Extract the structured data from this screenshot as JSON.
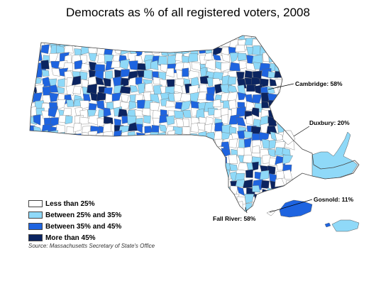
{
  "title": "Democrats as % of all registered voters, 2008",
  "legend": [
    {
      "label": "Less than 25%",
      "color": "#ffffff"
    },
    {
      "label": "Between 25% and 35%",
      "color": "#8fd9f8"
    },
    {
      "label": "Between 35% and 45%",
      "color": "#1e64e0"
    },
    {
      "label": "More than 45%",
      "color": "#0b2460"
    }
  ],
  "annotations": {
    "cambridge": "Cambridge: 58%",
    "duxbury": "Duxbury: 20%",
    "gosnold": "Gosnold: 11%",
    "fall_river": "Fall River: 58%"
  },
  "source": "Source: Massachusetts Secretary of State's Office"
}
